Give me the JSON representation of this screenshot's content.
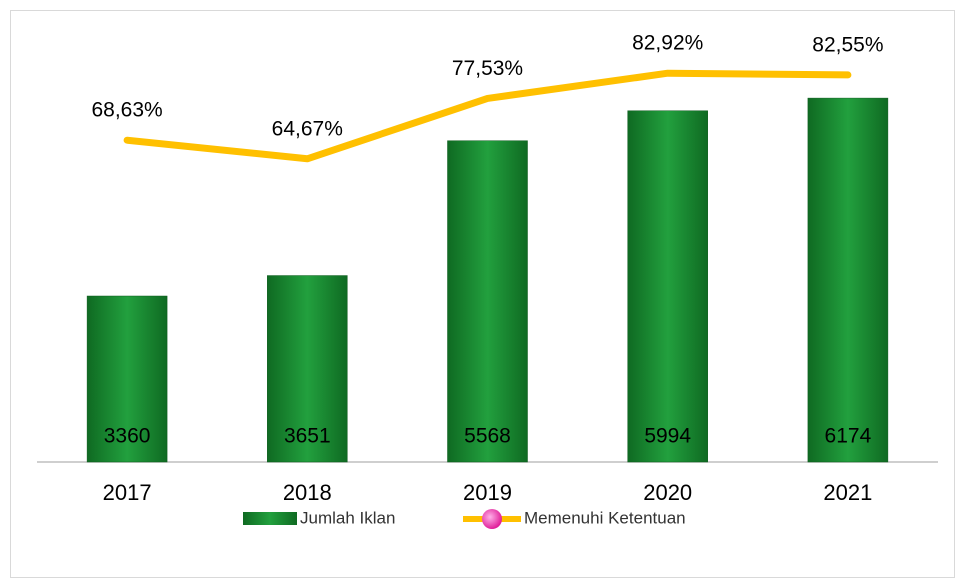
{
  "chart_data": {
    "type": "bar-line",
    "categories": [
      "2017",
      "2018",
      "2019",
      "2020",
      "2021"
    ],
    "series": [
      {
        "name": "Jumlah Iklan",
        "type": "bar",
        "color": "#1e8a35",
        "values": [
          3360,
          3651,
          5568,
          5994,
          6174
        ]
      },
      {
        "name": "Memenuhi Ketentuan",
        "type": "line",
        "axis": "y2",
        "color": "#ffc000",
        "values": [
          68.63,
          64.67,
          77.53,
          82.92,
          82.55
        ],
        "value_labels": [
          "68,63%",
          "64,67%",
          "77,53%",
          "82,92%",
          "82,55%"
        ]
      }
    ],
    "ylim": [
      1000,
      7000
    ],
    "y2lim": [
      0,
      90
    ],
    "legend": "bottom"
  }
}
